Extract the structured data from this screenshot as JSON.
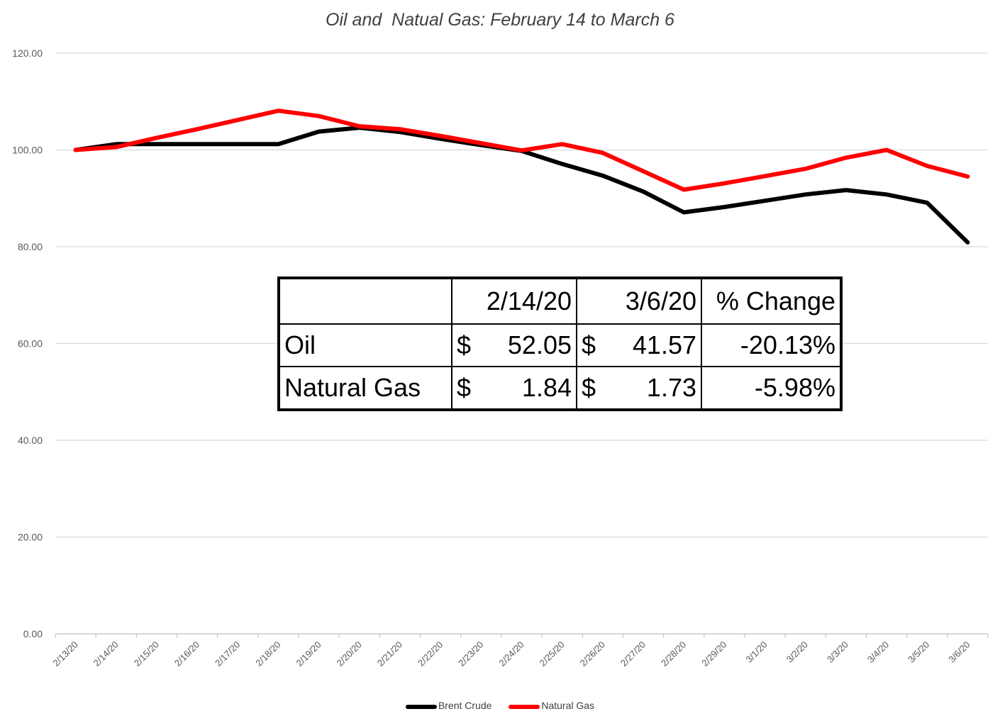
{
  "chart_data": {
    "type": "line",
    "title": "Oil and  Natual Gas: February 14 to March 6",
    "categories": [
      "2/13/20",
      "2/14/20",
      "2/15/20",
      "2/16/20",
      "2/17/20",
      "2/18/20",
      "2/19/20",
      "2/20/20",
      "2/21/20",
      "2/22/20",
      "2/23/20",
      "2/24/20",
      "2/25/20",
      "2/26/20",
      "2/27/20",
      "2/28/20",
      "2/29/20",
      "3/1/20",
      "3/2/20",
      "3/3/20",
      "3/4/20",
      "3/5/20",
      "3/6/20"
    ],
    "series": [
      {
        "name": "Brent Crude",
        "color": "#000000",
        "values": [
          100.0,
          101.2,
          101.2,
          101.2,
          101.2,
          101.2,
          103.8,
          104.6,
          103.7,
          102.3,
          101.0,
          99.8,
          97.1,
          94.7,
          91.4,
          87.1,
          88.2,
          89.5,
          90.8,
          91.7,
          90.8,
          89.1,
          80.9
        ]
      },
      {
        "name": "Natural Gas",
        "color": "#ff0000",
        "values": [
          100.0,
          100.6,
          102.5,
          104.3,
          106.2,
          108.1,
          107.0,
          104.9,
          104.3,
          102.9,
          101.4,
          99.9,
          101.2,
          99.4,
          95.6,
          91.8,
          93.1,
          94.6,
          96.1,
          98.4,
          100.0,
          96.7,
          94.5
        ]
      }
    ],
    "y_ticks": [
      "0.00",
      "20.00",
      "40.00",
      "60.00",
      "80.00",
      "100.00",
      "120.00"
    ],
    "ylim": [
      0,
      120
    ],
    "grid": true,
    "legend_position": "bottom"
  },
  "summary_table": {
    "headers": [
      "",
      "2/14/20",
      "3/6/20",
      "% Change"
    ],
    "rows": [
      {
        "label": "Oil",
        "start_symbol": "$",
        "start": "52.05",
        "end_symbol": "$",
        "end": "41.57",
        "change": "-20.13%"
      },
      {
        "label": "Natural Gas",
        "start_symbol": "$",
        "start": "1.84",
        "end_symbol": "$",
        "end": "1.73",
        "change": "-5.98%"
      }
    ]
  }
}
